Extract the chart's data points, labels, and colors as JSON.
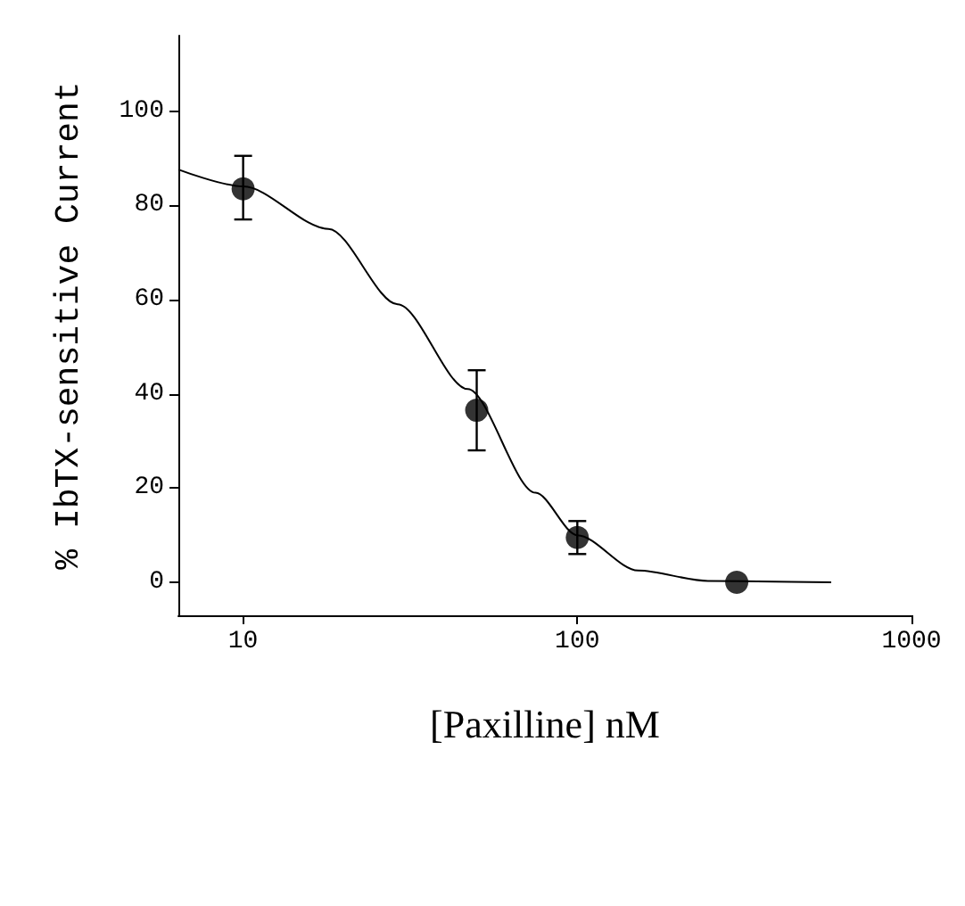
{
  "chart_data": {
    "type": "scatter",
    "xlabel": "[Paxilline] nM",
    "ylabel": "% IbTX-sensitive Current",
    "log": "x",
    "xlim": [
      6.4,
      1000
    ],
    "ylim": [
      -7,
      116
    ],
    "xticks": [
      10,
      100,
      1000
    ],
    "yticks": [
      0,
      20,
      40,
      60,
      80,
      100
    ],
    "grid": false,
    "marker": "circle",
    "series": [
      {
        "color": "#000000",
        "x": [
          10,
          50,
          100,
          300
        ],
        "values": [
          83.5,
          36.5,
          9.5,
          0
        ],
        "errors": [
          [
            77,
            90.5
          ],
          [
            28,
            45
          ],
          [
            6,
            13
          ],
          null
        ]
      },
      {
        "type": "line",
        "color": "#000000",
        "marker": "none",
        "line_style": "solid",
        "x": [
          6.4,
          10,
          18,
          29,
          47,
          75,
          100,
          152,
          246,
          575
        ],
        "values": [
          87.6,
          84,
          75,
          59,
          41,
          19,
          10,
          2.5,
          0.3,
          0
        ]
      }
    ]
  }
}
